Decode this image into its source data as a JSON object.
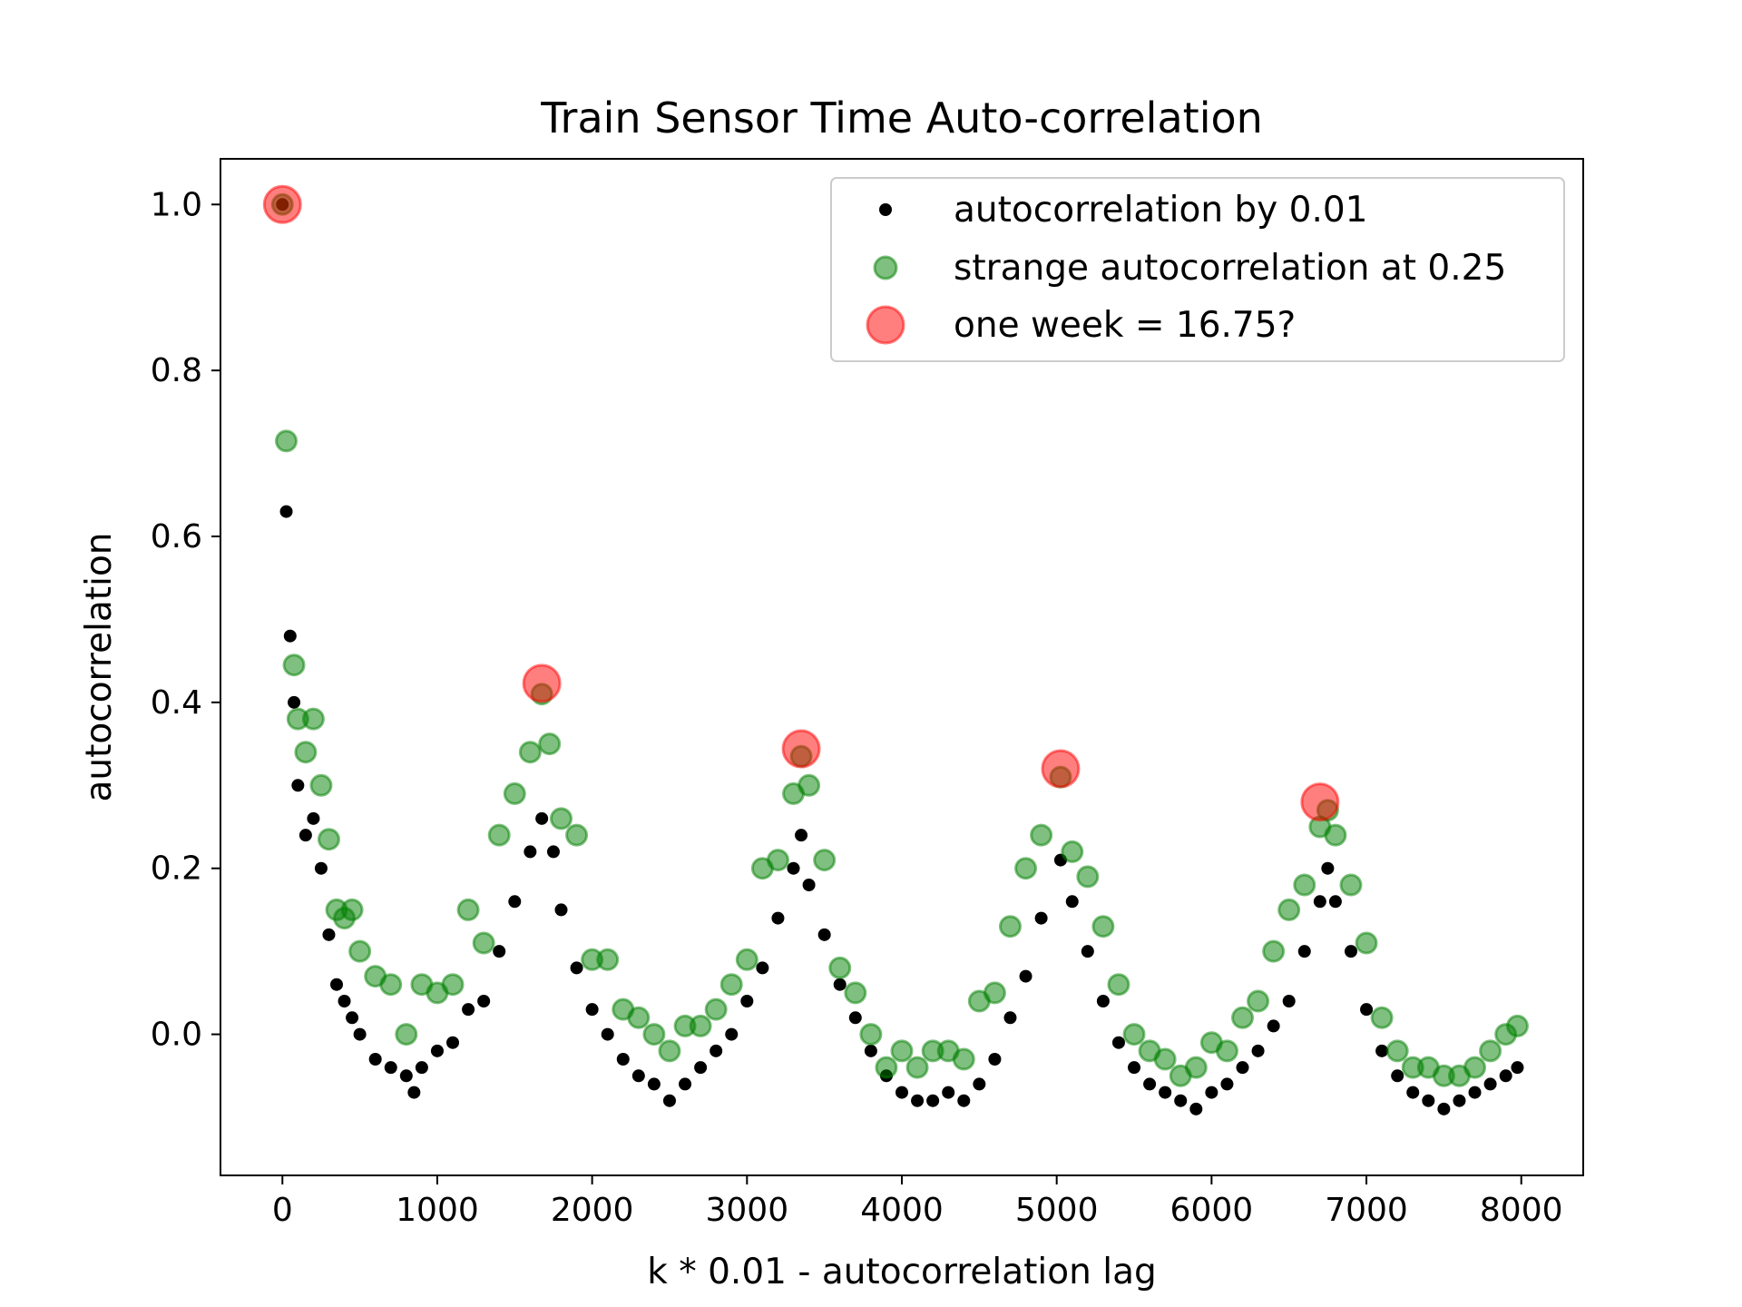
{
  "chart_data": {
    "type": "scatter",
    "title": "Train Sensor Time Auto-correlation",
    "xlabel": "k * 0.01 - autocorrelation lag",
    "ylabel": "autocorrelation",
    "xlim": [
      -400,
      8400
    ],
    "ylim": [
      -0.17,
      1.055
    ],
    "x_ticks": [
      0,
      1000,
      2000,
      3000,
      4000,
      5000,
      6000,
      7000,
      8000
    ],
    "x_tick_labels": [
      "0",
      "1000",
      "2000",
      "3000",
      "4000",
      "5000",
      "6000",
      "7000",
      "8000"
    ],
    "y_ticks": [
      0.0,
      0.2,
      0.4,
      0.6,
      0.8,
      1.0
    ],
    "y_tick_labels": [
      "0.0",
      "0.2",
      "0.4",
      "0.6",
      "0.8",
      "1.0"
    ],
    "grid": false,
    "legend_position": "top-right",
    "colors": {
      "autocorrelation": "#000000",
      "strange": "#008000",
      "week": "#ff0000"
    },
    "series": [
      {
        "name": "autocorrelation by 0.01",
        "color": "#000000",
        "marker": "small-dot",
        "x": [
          0,
          25,
          50,
          75,
          100,
          150,
          200,
          250,
          300,
          350,
          400,
          450,
          500,
          600,
          700,
          800,
          850,
          900,
          1000,
          1100,
          1200,
          1300,
          1400,
          1500,
          1600,
          1675,
          1750,
          1800,
          1900,
          2000,
          2100,
          2200,
          2300,
          2400,
          2500,
          2600,
          2700,
          2800,
          2900,
          3000,
          3100,
          3200,
          3300,
          3350,
          3400,
          3500,
          3600,
          3700,
          3800,
          3900,
          4000,
          4100,
          4200,
          4300,
          4400,
          4500,
          4600,
          4700,
          4800,
          4900,
          5025,
          5100,
          5200,
          5300,
          5400,
          5500,
          5600,
          5700,
          5800,
          5900,
          6000,
          6100,
          6200,
          6300,
          6400,
          6500,
          6600,
          6700,
          6750,
          6800,
          6900,
          7000,
          7100,
          7200,
          7300,
          7400,
          7500,
          7600,
          7700,
          7800,
          7900,
          7975
        ],
        "y": [
          1.0,
          0.63,
          0.48,
          0.4,
          0.3,
          0.24,
          0.26,
          0.2,
          0.12,
          0.06,
          0.04,
          0.02,
          0.0,
          -0.03,
          -0.04,
          -0.05,
          -0.07,
          -0.04,
          -0.02,
          -0.01,
          0.03,
          0.04,
          0.1,
          0.16,
          0.22,
          0.26,
          0.22,
          0.15,
          0.08,
          0.03,
          0.0,
          -0.03,
          -0.05,
          -0.06,
          -0.08,
          -0.06,
          -0.04,
          -0.02,
          0.0,
          0.04,
          0.08,
          0.14,
          0.2,
          0.24,
          0.18,
          0.12,
          0.06,
          0.02,
          -0.02,
          -0.05,
          -0.07,
          -0.08,
          -0.08,
          -0.07,
          -0.08,
          -0.06,
          -0.03,
          0.02,
          0.07,
          0.14,
          0.21,
          0.16,
          0.1,
          0.04,
          -0.01,
          -0.04,
          -0.06,
          -0.07,
          -0.08,
          -0.09,
          -0.07,
          -0.06,
          -0.04,
          -0.02,
          0.01,
          0.04,
          0.1,
          0.16,
          0.2,
          0.16,
          0.1,
          0.03,
          -0.02,
          -0.05,
          -0.07,
          -0.08,
          -0.09,
          -0.08,
          -0.07,
          -0.06,
          -0.05,
          -0.04
        ]
      },
      {
        "name": "strange autocorrelation at 0.25",
        "color": "#008000",
        "marker": "medium-circle",
        "x": [
          0,
          25,
          75,
          100,
          150,
          200,
          250,
          300,
          350,
          400,
          450,
          500,
          600,
          700,
          800,
          900,
          1000,
          1100,
          1200,
          1300,
          1400,
          1500,
          1600,
          1675,
          1725,
          1800,
          1900,
          2000,
          2100,
          2200,
          2300,
          2400,
          2500,
          2600,
          2700,
          2800,
          2900,
          3000,
          3100,
          3200,
          3300,
          3350,
          3400,
          3500,
          3600,
          3700,
          3800,
          3900,
          4000,
          4100,
          4200,
          4300,
          4400,
          4500,
          4600,
          4700,
          4800,
          4900,
          5025,
          5100,
          5200,
          5300,
          5400,
          5500,
          5600,
          5700,
          5800,
          5900,
          6000,
          6100,
          6200,
          6300,
          6400,
          6500,
          6600,
          6700,
          6750,
          6800,
          6900,
          7000,
          7100,
          7200,
          7300,
          7400,
          7500,
          7600,
          7700,
          7800,
          7900,
          7975
        ],
        "y": [
          1.0,
          0.715,
          0.445,
          0.38,
          0.34,
          0.38,
          0.3,
          0.235,
          0.15,
          0.14,
          0.15,
          0.1,
          0.07,
          0.06,
          0.0,
          0.06,
          0.05,
          0.06,
          0.15,
          0.11,
          0.24,
          0.29,
          0.34,
          0.41,
          0.35,
          0.26,
          0.24,
          0.09,
          0.09,
          0.03,
          0.02,
          0.0,
          -0.02,
          0.01,
          0.01,
          0.03,
          0.06,
          0.09,
          0.2,
          0.21,
          0.29,
          0.335,
          0.3,
          0.21,
          0.08,
          0.05,
          0.0,
          -0.04,
          -0.02,
          -0.04,
          -0.02,
          -0.02,
          -0.03,
          0.04,
          0.05,
          0.13,
          0.2,
          0.24,
          0.31,
          0.22,
          0.19,
          0.13,
          0.06,
          0.0,
          -0.02,
          -0.03,
          -0.05,
          -0.04,
          -0.01,
          -0.02,
          0.02,
          0.04,
          0.1,
          0.15,
          0.18,
          0.25,
          0.27,
          0.24,
          0.18,
          0.11,
          0.02,
          -0.02,
          -0.04,
          -0.04,
          -0.05,
          -0.05,
          -0.04,
          -0.02,
          0.0,
          0.01
        ]
      },
      {
        "name": "one week = 16.75?",
        "color": "#ff0000",
        "marker": "large-circle",
        "x": [
          0,
          1675,
          3350,
          5025,
          6700
        ],
        "y": [
          1.0,
          0.423,
          0.344,
          0.32,
          0.28
        ]
      }
    ]
  }
}
